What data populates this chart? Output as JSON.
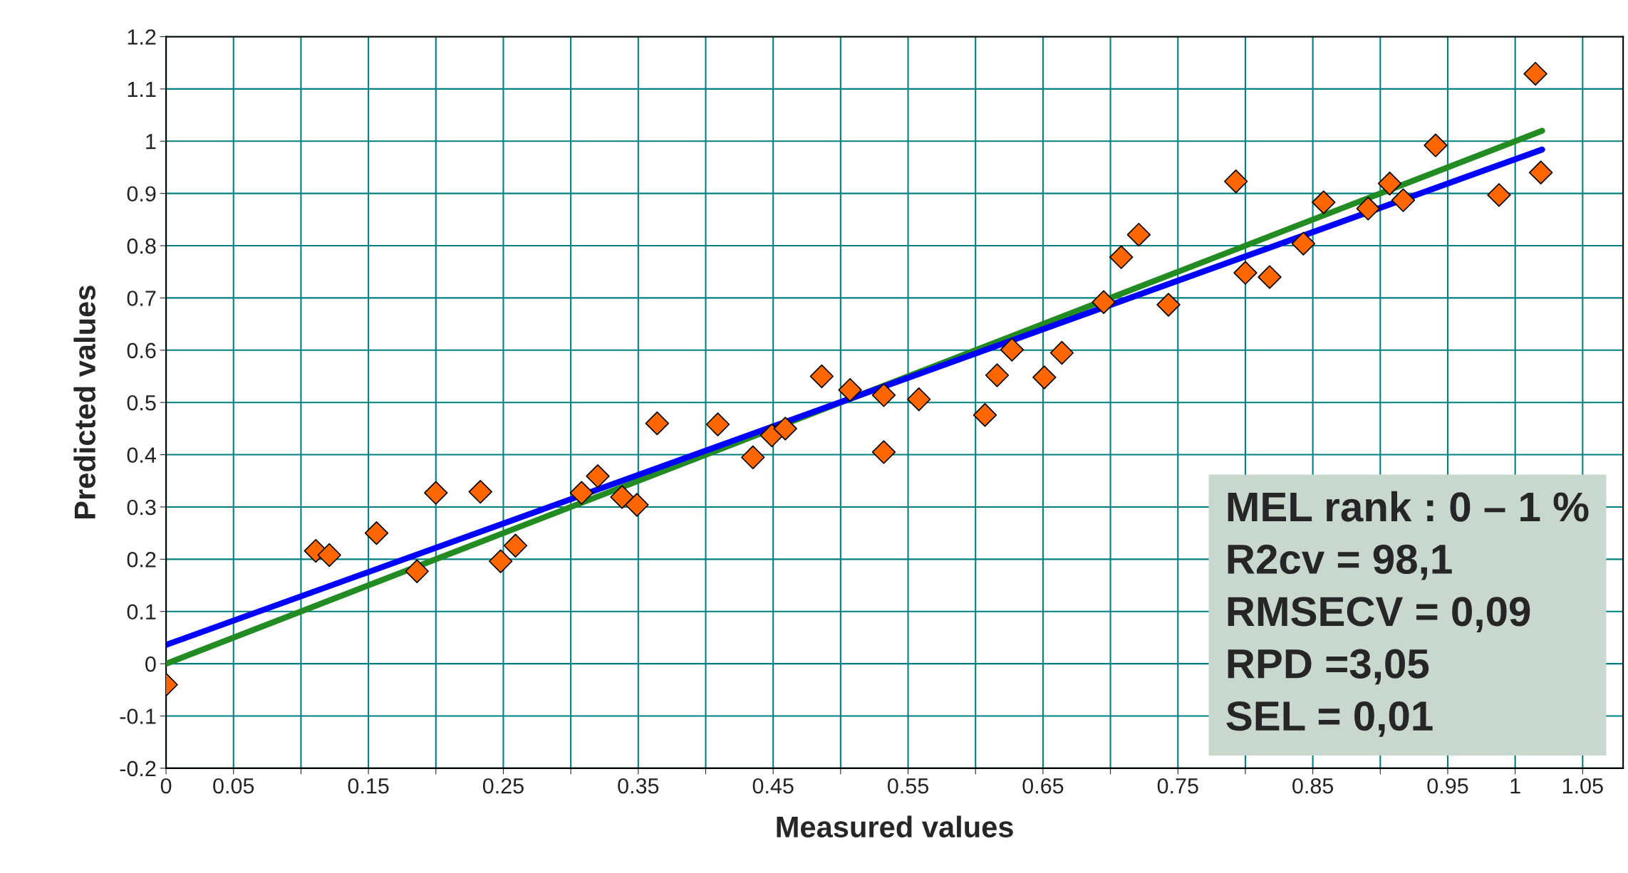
{
  "chart_data": {
    "type": "scatter",
    "xlabel": "Measured values",
    "ylabel": "Predicted values",
    "xlim": [
      0,
      1.08
    ],
    "ylim": [
      -0.2,
      1.2
    ],
    "xticks": [
      0,
      0.05,
      {
        "value": 0.1,
        "label": null
      },
      0.15,
      {
        "value": 0.2,
        "label": null
      },
      0.25,
      {
        "value": 0.3,
        "label": null
      },
      0.35,
      {
        "value": 0.4,
        "label": null
      },
      0.45,
      {
        "value": 0.5,
        "label": null
      },
      0.55,
      {
        "value": 0.6,
        "label": null
      },
      0.65,
      {
        "value": 0.7,
        "label": null
      },
      0.75,
      {
        "value": 0.8,
        "label": null
      },
      0.85,
      {
        "value": 0.9,
        "label": null
      },
      0.95,
      1,
      1.05
    ],
    "yticks": [
      -0.2,
      -0.1,
      0,
      0.1,
      0.2,
      0.3,
      0.4,
      0.5,
      0.6,
      0.7,
      0.8,
      0.9,
      1,
      1.1,
      1.2
    ],
    "grid": true,
    "series": [
      {
        "marker": "diamond",
        "color": "#ff6600",
        "x": [
          0.0,
          0.111,
          0.121,
          0.156,
          0.186,
          0.2,
          0.233,
          0.248,
          0.259,
          0.308,
          0.32,
          0.338,
          0.349,
          0.364,
          0.409,
          0.435,
          0.449,
          0.459,
          0.486,
          0.507,
          0.532,
          0.532,
          0.558,
          0.607,
          0.616,
          0.627,
          0.651,
          0.664,
          0.695,
          0.708,
          0.721,
          0.743,
          0.793,
          0.8,
          0.818,
          0.843,
          0.858,
          0.891,
          0.907,
          0.917,
          0.941,
          0.988,
          1.015,
          1.019
        ],
        "values": [
          -0.04,
          0.216,
          0.208,
          0.25,
          0.177,
          0.327,
          0.329,
          0.196,
          0.226,
          0.327,
          0.359,
          0.319,
          0.304,
          0.46,
          0.458,
          0.395,
          0.437,
          0.45,
          0.55,
          0.524,
          0.514,
          0.405,
          0.506,
          0.476,
          0.552,
          0.601,
          0.548,
          0.595,
          0.692,
          0.778,
          0.821,
          0.687,
          0.923,
          0.748,
          0.74,
          0.804,
          0.883,
          0.871,
          0.919,
          0.887,
          0.992,
          0.897,
          1.129,
          0.94
        ]
      },
      {
        "type": "line",
        "marker": "none",
        "color": "#228b22",
        "x": [
          0,
          1.02
        ],
        "values": [
          0,
          1.02
        ]
      },
      {
        "type": "line",
        "marker": "none",
        "color": "#0000ff",
        "x": [
          0,
          1.02
        ],
        "values": [
          0.036,
          0.984
        ]
      }
    ],
    "annotations": [
      "MEL rank : 0 – 1 %",
      "R2cv = 98,1",
      "RMSECV = 0,09",
      "RPD =3,05",
      "SEL = 0,01"
    ]
  }
}
